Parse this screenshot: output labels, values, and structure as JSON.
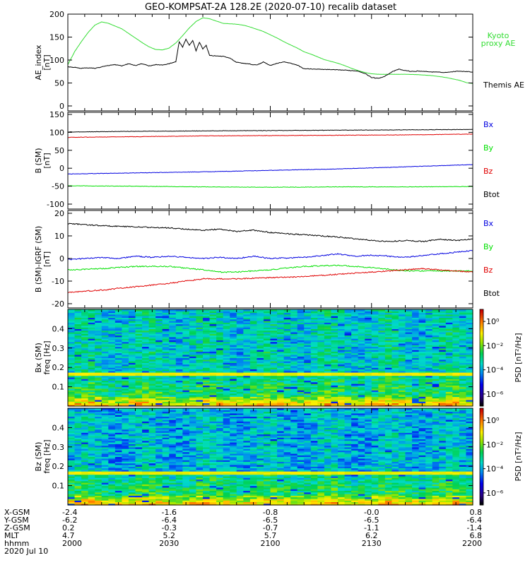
{
  "title": "GEO-KOMPSAT-2A 128.2E (2020-07-10) recalib dataset",
  "colors": {
    "black": "#000000",
    "red": "#e00000",
    "green": "#00e000",
    "blue": "#0000e0",
    "kyoto": "#33dd33"
  },
  "chart_data": [
    {
      "type": "line",
      "panel": "ae",
      "ylabel_line1": "AE_index",
      "ylabel_line2": "[nT]",
      "ylim": [
        0,
        200
      ],
      "yticks": [
        0,
        50,
        100,
        150,
        200
      ],
      "xlim": [
        0,
        120
      ],
      "legend": [
        {
          "text_lines": [
            "Kyoto",
            "proxy AE"
          ],
          "color": "#33dd33"
        },
        {
          "text_lines": [
            "Themis AE"
          ],
          "color": "#000000"
        }
      ],
      "series": [
        {
          "name": "Kyoto proxy AE",
          "color": "#33dd33",
          "x": [
            0,
            2,
            4,
            6,
            8,
            10,
            12,
            14,
            16,
            18,
            20,
            22,
            24,
            26,
            28,
            30,
            32,
            34,
            36,
            38,
            40,
            42,
            44,
            46,
            48,
            50,
            52,
            54,
            56,
            58,
            60,
            62,
            64,
            66,
            68,
            70,
            72,
            74,
            76,
            78,
            80,
            82,
            84,
            86,
            88,
            90,
            92,
            94,
            96,
            98,
            100,
            104,
            108,
            112,
            116,
            118,
            120
          ],
          "y": [
            90,
            118,
            140,
            160,
            176,
            183,
            180,
            174,
            168,
            158,
            148,
            138,
            129,
            123,
            122,
            126,
            137,
            153,
            170,
            184,
            192,
            190,
            185,
            180,
            179,
            178,
            176,
            172,
            167,
            162,
            155,
            148,
            140,
            133,
            126,
            118,
            113,
            107,
            101,
            97,
            93,
            88,
            82,
            77,
            73,
            70,
            69,
            69,
            69,
            69,
            69,
            68,
            66,
            62,
            56,
            51,
            49
          ]
        },
        {
          "name": "Themis AE",
          "color": "#000000",
          "x": [
            0,
            2,
            4,
            6,
            8,
            10,
            12,
            14,
            16,
            18,
            20,
            22,
            24,
            26,
            28,
            30,
            32,
            33,
            34,
            35,
            36,
            37,
            38,
            39,
            40,
            41,
            42,
            44,
            46,
            48,
            50,
            52,
            54,
            56,
            58,
            60,
            62,
            64,
            66,
            68,
            70,
            74,
            78,
            82,
            86,
            88,
            90,
            92,
            94,
            96,
            98,
            100,
            102,
            104,
            106,
            108,
            112,
            116,
            120
          ],
          "y": [
            85,
            84,
            82,
            83,
            82,
            85,
            88,
            90,
            87,
            92,
            88,
            92,
            87,
            90,
            89,
            92,
            96,
            140,
            128,
            145,
            132,
            143,
            120,
            139,
            124,
            132,
            110,
            109,
            108,
            104,
            95,
            93,
            91,
            89,
            96,
            88,
            93,
            96,
            93,
            89,
            81,
            80,
            79,
            78,
            76,
            71,
            62,
            60,
            65,
            74,
            80,
            77,
            75,
            76,
            75,
            74,
            73,
            76,
            74
          ]
        }
      ]
    },
    {
      "type": "line",
      "panel": "b",
      "ylabel_line1": "B (SM)",
      "ylabel_line2": "[nT]",
      "ylim": [
        -100,
        150
      ],
      "yticks": [
        -100,
        -50,
        0,
        50,
        100,
        150
      ],
      "xlim": [
        0,
        120
      ],
      "legend": [
        {
          "text_lines": [
            "Bx"
          ],
          "color": "#0000e0"
        },
        {
          "text_lines": [
            "By"
          ],
          "color": "#00e000"
        },
        {
          "text_lines": [
            "Bz"
          ],
          "color": "#e00000"
        },
        {
          "text_lines": [
            "Btot"
          ],
          "color": "#000000"
        }
      ],
      "series": [
        {
          "name": "Btot",
          "color": "#000000",
          "x": [
            0,
            20,
            40,
            60,
            80,
            100,
            120
          ],
          "y": [
            101,
            103,
            104,
            105,
            106,
            107,
            108
          ]
        },
        {
          "name": "Bz",
          "color": "#e00000",
          "x": [
            0,
            20,
            40,
            60,
            80,
            100,
            120
          ],
          "y": [
            86,
            88,
            90,
            91,
            92,
            93,
            95
          ]
        },
        {
          "name": "Bx",
          "color": "#0000e0",
          "x": [
            0,
            20,
            40,
            60,
            80,
            100,
            120
          ],
          "y": [
            -16,
            -13,
            -10,
            -6,
            -2,
            4,
            10
          ]
        },
        {
          "name": "By",
          "color": "#00e000",
          "x": [
            0,
            20,
            40,
            60,
            80,
            100,
            120
          ],
          "y": [
            -49,
            -50,
            -52,
            -53,
            -52,
            -52,
            -51
          ]
        }
      ]
    },
    {
      "type": "line",
      "panel": "db",
      "ylabel_line1": "B (SM)-IGRF (SM)",
      "ylabel_line2": "[nT]",
      "ylim": [
        -20,
        20
      ],
      "yticks": [
        -20,
        -10,
        0,
        10,
        20
      ],
      "xlim": [
        0,
        120
      ],
      "legend": [
        {
          "text_lines": [
            "Bx"
          ],
          "color": "#0000e0"
        },
        {
          "text_lines": [
            "By"
          ],
          "color": "#00e000"
        },
        {
          "text_lines": [
            "Bz"
          ],
          "color": "#e00000"
        },
        {
          "text_lines": [
            "Btot"
          ],
          "color": "#000000"
        }
      ],
      "series": [
        {
          "name": "Btot",
          "color": "#000000",
          "x": [
            0,
            10,
            20,
            30,
            40,
            45,
            50,
            55,
            60,
            70,
            80,
            90,
            95,
            100,
            105,
            110,
            115,
            120
          ],
          "y": [
            15.5,
            14.5,
            14.0,
            13.5,
            12.5,
            13.0,
            12.0,
            12.5,
            11.5,
            10.5,
            9.5,
            8.0,
            7.5,
            8.0,
            7.5,
            8.5,
            8.0,
            8.5
          ]
        },
        {
          "name": "Bx",
          "color": "#0000e0",
          "x": [
            0,
            10,
            15,
            20,
            25,
            30,
            40,
            45,
            50,
            55,
            60,
            70,
            80,
            85,
            90,
            95,
            100,
            110,
            120
          ],
          "y": [
            -0.5,
            0.5,
            0.0,
            1.0,
            0.5,
            1.0,
            0.0,
            0.5,
            0.0,
            1.0,
            0.0,
            0.5,
            2.0,
            1.0,
            1.5,
            1.0,
            0.5,
            2.0,
            3.5
          ]
        },
        {
          "name": "By",
          "color": "#00e000",
          "x": [
            0,
            10,
            20,
            30,
            40,
            45,
            50,
            60,
            70,
            80,
            90,
            100,
            110,
            120
          ],
          "y": [
            -5.0,
            -4.5,
            -3.5,
            -3.5,
            -5.0,
            -6.0,
            -6.0,
            -5.0,
            -3.5,
            -3.0,
            -4.0,
            -5.5,
            -5.5,
            -5.5
          ]
        },
        {
          "name": "Bz",
          "color": "#e00000",
          "x": [
            0,
            10,
            20,
            30,
            40,
            50,
            60,
            70,
            80,
            90,
            100,
            105,
            110,
            115,
            120
          ],
          "y": [
            -15.0,
            -14.0,
            -12.5,
            -11.0,
            -9.0,
            -9.0,
            -8.5,
            -8.0,
            -7.0,
            -6.0,
            -5.0,
            -4.5,
            -5.0,
            -5.5,
            -6.0
          ]
        }
      ]
    },
    {
      "type": "heatmap",
      "panel": "spec_bx",
      "ylabel_line1": "Bx (SM)",
      "ylabel_line2": "freq [Hz]",
      "ylim": [
        0,
        0.5
      ],
      "yticks": [
        0.1,
        0.2,
        0.3,
        0.4
      ],
      "xlim": [
        0,
        120
      ],
      "colorbar_label": "PSD [nT²/Hz]",
      "colorbar_ticks": [
        "10⁰",
        "10⁻²",
        "10⁻⁴",
        "10⁻⁶"
      ],
      "colorbar_tick_exponents": [
        0,
        -2,
        -4,
        -6
      ],
      "colorbar_range_log": [
        -7,
        1
      ],
      "band_at_freq": 0.167
    },
    {
      "type": "heatmap",
      "panel": "spec_bz",
      "ylabel_line1": "Bz (SM)",
      "ylabel_line2": "freq [Hz]",
      "ylim": [
        0,
        0.5
      ],
      "yticks": [
        0.1,
        0.2,
        0.3,
        0.4
      ],
      "xlim": [
        0,
        120
      ],
      "colorbar_label": "PSD [nT²/Hz]",
      "colorbar_ticks": [
        "10⁰",
        "10⁻²",
        "10⁻⁴",
        "10⁻⁶"
      ],
      "colorbar_tick_exponents": [
        0,
        -2,
        -4,
        -6
      ],
      "colorbar_range_log": [
        -7,
        1
      ],
      "band_at_freq": 0.167
    }
  ],
  "ephemeris": {
    "row_labels": [
      "X-GSM",
      "Y-GSM",
      "Z-GSM",
      "MLT",
      "hhmm",
      "2020 Jul 10"
    ],
    "columns": [
      {
        "x_min": 0,
        "values": [
          "-2.4",
          "-6.2",
          "0.2",
          "4.7",
          "2000"
        ]
      },
      {
        "x_min": 30,
        "values": [
          "-1.6",
          "-6.4",
          "-0.3",
          "5.2",
          "2030"
        ]
      },
      {
        "x_min": 60,
        "values": [
          "-0.8",
          "-6.5",
          "-0.7",
          "5.7",
          "2100"
        ]
      },
      {
        "x_min": 90,
        "values": [
          "-0.0",
          "-6.5",
          "-1.1",
          "6.2",
          "2130"
        ]
      },
      {
        "x_min": 120,
        "values": [
          "0.8",
          "-6.4",
          "-1.4",
          "6.8",
          "2200"
        ]
      }
    ]
  }
}
